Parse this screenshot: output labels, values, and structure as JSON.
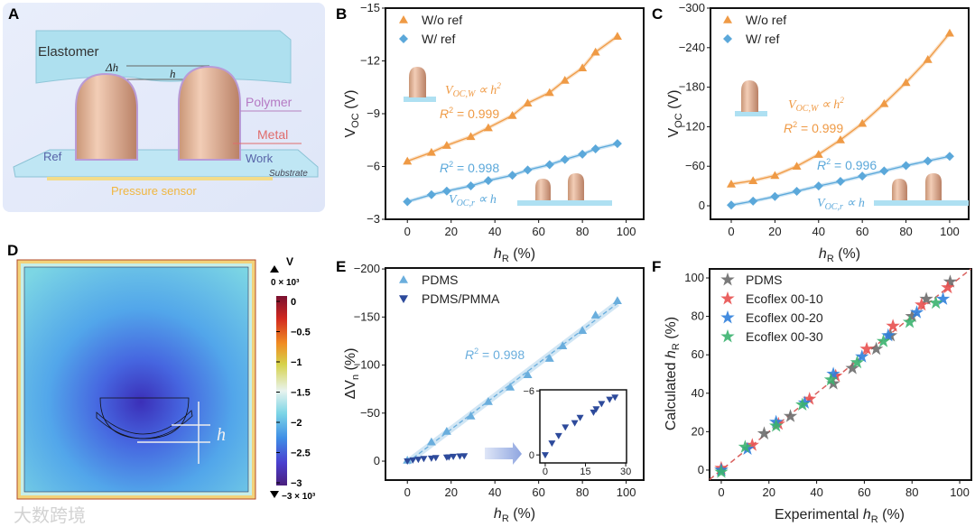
{
  "panel_labels": [
    "A",
    "B",
    "C",
    "D",
    "E",
    "F"
  ],
  "panel_a": {
    "elastomer": "Elastomer",
    "delta_h": "Δh",
    "h": "h",
    "polymer": "Polymer",
    "metal": "Metal",
    "ref": "Ref",
    "work": "Work",
    "substrate": "Substrate",
    "pressure_sensor": "Pressure sensor"
  },
  "panel_d": {
    "unit": "V",
    "top_limit": "0 × 10³",
    "bottom_limit": "−3 × 10³",
    "colorbar_ticks": [
      "0",
      "−0.5",
      "−1",
      "−1.5",
      "−2",
      "−2.5",
      "−3"
    ],
    "h": "h",
    "watermark": "大数跨境"
  },
  "colors": {
    "orange": "#ef9a45",
    "blue": "#5ba8da",
    "navy": "#2d4a9b",
    "pdms_gray": "#6b6b6b",
    "red": "#e8504f",
    "ecoblue": "#2f7fdc",
    "green": "#3bb26f",
    "fit_red": "#d9605e"
  },
  "annotations": {
    "b_vw": [
      "V",
      "OC,W",
      " ∝ h",
      "2"
    ],
    "b_r2w": [
      "R",
      "2",
      " = 0.999"
    ],
    "b_r2r": [
      "R",
      "2",
      " = 0.998"
    ],
    "b_vr": [
      "V",
      "OC,r",
      " ∝ h"
    ],
    "c_vw": [
      "V",
      "OC,W",
      " ∝ h",
      "2"
    ],
    "c_r2w": [
      "R",
      "2",
      " = 0.999"
    ],
    "c_r2r": [
      "R",
      "2",
      " = 0.996"
    ],
    "c_vr": [
      "V",
      "OC,r",
      " ∝ h"
    ],
    "e_r2": [
      "R",
      "2",
      " = 0.998"
    ]
  },
  "chart_data": [
    {
      "id": "B",
      "type": "line",
      "xlabel": {
        "main": "h",
        "sub": "R",
        "unit": " (%)"
      },
      "ylabel": {
        "main": "V",
        "sub": "OC",
        "unit": " (V)"
      },
      "xlim": [
        -10,
        108
      ],
      "ylim": [
        -3,
        -15
      ],
      "xticks": [
        0,
        20,
        40,
        60,
        80,
        100
      ],
      "yticks": [
        -3,
        -6,
        -9,
        -12,
        -15
      ],
      "ytick_labels": [
        "−3",
        "−6",
        "−9",
        "−12",
        "−15"
      ],
      "series": [
        {
          "name": "W/o ref",
          "marker": "triangle-up",
          "color": "#ef9a45",
          "x": [
            0,
            11,
            18,
            29,
            37,
            48,
            55,
            65,
            72,
            80,
            86,
            96
          ],
          "y": [
            -6.3,
            -6.8,
            -7.2,
            -7.7,
            -8.2,
            -8.9,
            -9.6,
            -10.2,
            -10.9,
            -11.6,
            -12.5,
            -13.4
          ]
        },
        {
          "name": "W/ ref",
          "marker": "diamond",
          "color": "#5ba8da",
          "x": [
            0,
            11,
            18,
            29,
            37,
            48,
            55,
            65,
            72,
            80,
            86,
            96
          ],
          "y": [
            -4.0,
            -4.4,
            -4.6,
            -4.9,
            -5.2,
            -5.5,
            -5.8,
            -6.1,
            -6.4,
            -6.7,
            -7.0,
            -7.3
          ]
        }
      ]
    },
    {
      "id": "C",
      "type": "line",
      "xlabel": {
        "main": "h",
        "sub": "R",
        "unit": " (%)"
      },
      "ylabel": {
        "main": "V",
        "sub": "OC",
        "unit": " (V)"
      },
      "xlim": [
        -9.5,
        108.7
      ],
      "ylim": [
        20.5,
        -300
      ],
      "xticks": [
        0,
        20,
        40,
        60,
        80,
        100
      ],
      "yticks": [
        0,
        -60,
        -120,
        -180,
        -240,
        -300
      ],
      "ytick_labels": [
        "0",
        "−60",
        "−120",
        "−180",
        "−240",
        "−300"
      ],
      "series": [
        {
          "name": "W/o ref",
          "marker": "triangle-up",
          "color": "#ef9a45",
          "x": [
            0,
            10,
            20,
            30,
            40,
            50,
            60,
            70,
            80,
            90,
            100
          ],
          "y": [
            -33,
            -38,
            -46,
            -60,
            -78,
            -100,
            -125,
            -155,
            -187,
            -222,
            -262
          ]
        },
        {
          "name": "W/ ref",
          "marker": "diamond",
          "color": "#5ba8da",
          "x": [
            0,
            10,
            20,
            30,
            40,
            50,
            60,
            70,
            80,
            90,
            100
          ],
          "y": [
            -1,
            -7,
            -14,
            -22,
            -30,
            -37,
            -45,
            -53,
            -61,
            -68,
            -75
          ]
        }
      ]
    },
    {
      "id": "E",
      "type": "scatter",
      "xlabel": {
        "main": "h",
        "sub": "R",
        "unit": " (%)"
      },
      "ylabel": {
        "main": "ΔV",
        "sub": "n",
        "unit": " (%)"
      },
      "xlim": [
        -10,
        108
      ],
      "ylim": [
        19.7,
        -201
      ],
      "xticks": [
        0,
        20,
        40,
        60,
        80,
        100
      ],
      "yticks": [
        0,
        -50,
        -100,
        -150,
        -200
      ],
      "ytick_labels": [
        "0",
        "−50",
        "−100",
        "−150",
        "−200"
      ],
      "series": [
        {
          "name": "PDMS",
          "marker": "triangle-up",
          "color": "#6aaedd",
          "fit": "linear",
          "x": [
            0,
            11,
            18,
            29,
            37,
            47,
            55,
            65,
            71,
            80,
            86,
            96
          ],
          "y": [
            -1,
            -20,
            -31,
            -47,
            -62,
            -77,
            -90,
            -107,
            -120,
            -136,
            -152,
            -167
          ]
        },
        {
          "name": "PDMS/PMMA",
          "marker": "triangle-down",
          "color": "#2d4a9b",
          "x": [
            0,
            2.5,
            5,
            7.5,
            11,
            13,
            18,
            19,
            21,
            24,
            26
          ],
          "y": [
            0,
            -1.1,
            -1.8,
            -2.6,
            -3,
            -3.5,
            -4,
            -4.3,
            -4.8,
            -5.2,
            -5.4
          ]
        }
      ]
    },
    {
      "id": "E-inset",
      "type": "scatter",
      "xlim": [
        -2,
        30.3
      ],
      "ylim": [
        0.75,
        -6.1
      ],
      "xticks": [
        0,
        15,
        30
      ],
      "yticks": [
        0,
        -6
      ],
      "ytick_labels": [
        "0",
        "−6"
      ],
      "series": [
        {
          "name": "PDMS/PMMA",
          "marker": "triangle-down",
          "color": "#2d4a9b",
          "x": [
            0,
            2.5,
            5,
            7.5,
            11,
            13,
            18,
            19,
            21,
            24,
            26
          ],
          "y": [
            0,
            -1.1,
            -1.8,
            -2.6,
            -3,
            -3.5,
            -4,
            -4.3,
            -4.8,
            -5.2,
            -5.4
          ]
        }
      ]
    },
    {
      "id": "F",
      "type": "scatter",
      "xlabel": {
        "pre": "Experimental ",
        "main": "h",
        "sub": "R",
        "unit": " (%)"
      },
      "ylabel": {
        "pre": "Calculated ",
        "main": "h",
        "sub": "R",
        "unit": " (%)"
      },
      "xlim": [
        -4.9,
        104.9
      ],
      "ylim": [
        -5.2,
        104.7
      ],
      "xticks": [
        0,
        20,
        40,
        60,
        80,
        100
      ],
      "yticks": [
        0,
        20,
        40,
        60,
        80,
        100
      ],
      "ytick_labels": [
        "0",
        "20",
        "40",
        "60",
        "80",
        "100"
      ],
      "reference_line": "y = x",
      "series": [
        {
          "name": "PDMS",
          "marker": "star",
          "color": "#6b6b6b",
          "x": [
            0,
            18,
            29,
            47,
            55,
            65,
            71,
            80,
            86,
            96
          ],
          "y": [
            0,
            19,
            28,
            45,
            53,
            63,
            70,
            80,
            89,
            98
          ]
        },
        {
          "name": "Ecoflex 00-10",
          "marker": "star",
          "color": "#e8504f",
          "x": [
            0,
            13,
            24,
            37,
            48,
            61,
            72,
            84,
            95
          ],
          "y": [
            1,
            13,
            24,
            37,
            49,
            63,
            75,
            86,
            95
          ]
        },
        {
          "name": "Ecoflex 00-20",
          "marker": "star",
          "color": "#2f7fdc",
          "x": [
            0,
            11,
            23,
            35,
            47,
            59,
            70,
            82,
            93
          ],
          "y": [
            0,
            11,
            25,
            35,
            50,
            59,
            70,
            82,
            89
          ]
        },
        {
          "name": "Ecoflex 00-30",
          "marker": "star",
          "color": "#3bb26f",
          "x": [
            0,
            10,
            23,
            34,
            46,
            57,
            68,
            79,
            90
          ],
          "y": [
            -1,
            12,
            23,
            34,
            47,
            56,
            67,
            77,
            87
          ]
        }
      ]
    }
  ]
}
